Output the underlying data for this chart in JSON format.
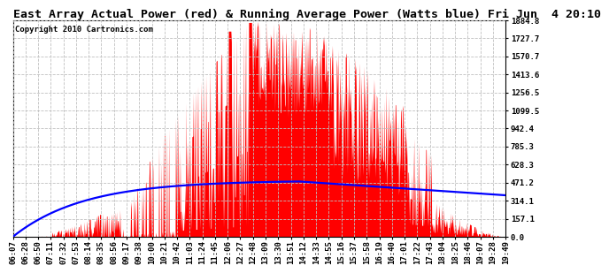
{
  "title": "East Array Actual Power (red) & Running Average Power (Watts blue) Fri Jun  4 20:10",
  "copyright": "Copyright 2010 Cartronics.com",
  "ylabel_ticks": [
    0.0,
    157.1,
    314.1,
    471.2,
    628.3,
    785.3,
    942.4,
    1099.5,
    1256.5,
    1413.6,
    1570.7,
    1727.7,
    1884.8
  ],
  "ymax": 1884.8,
  "background_color": "#ffffff",
  "plot_bg_color": "#ffffff",
  "red_color": "#ff0000",
  "blue_color": "#0000ff",
  "grid_color": "#c0c0c0",
  "title_fontsize": 9.5,
  "copyright_fontsize": 6.5,
  "tick_fontsize": 6.5,
  "xtick_labels": [
    "06:07",
    "06:28",
    "06:50",
    "07:11",
    "07:32",
    "07:53",
    "08:14",
    "08:35",
    "08:56",
    "09:17",
    "09:38",
    "10:00",
    "10:21",
    "10:42",
    "11:03",
    "11:24",
    "11:45",
    "12:06",
    "12:27",
    "12:48",
    "13:09",
    "13:30",
    "13:51",
    "14:12",
    "14:33",
    "14:55",
    "15:16",
    "15:37",
    "15:58",
    "16:19",
    "16:40",
    "17:01",
    "17:22",
    "17:43",
    "18:04",
    "18:25",
    "18:46",
    "19:07",
    "19:28",
    "19:49"
  ],
  "n_xticks": 40
}
